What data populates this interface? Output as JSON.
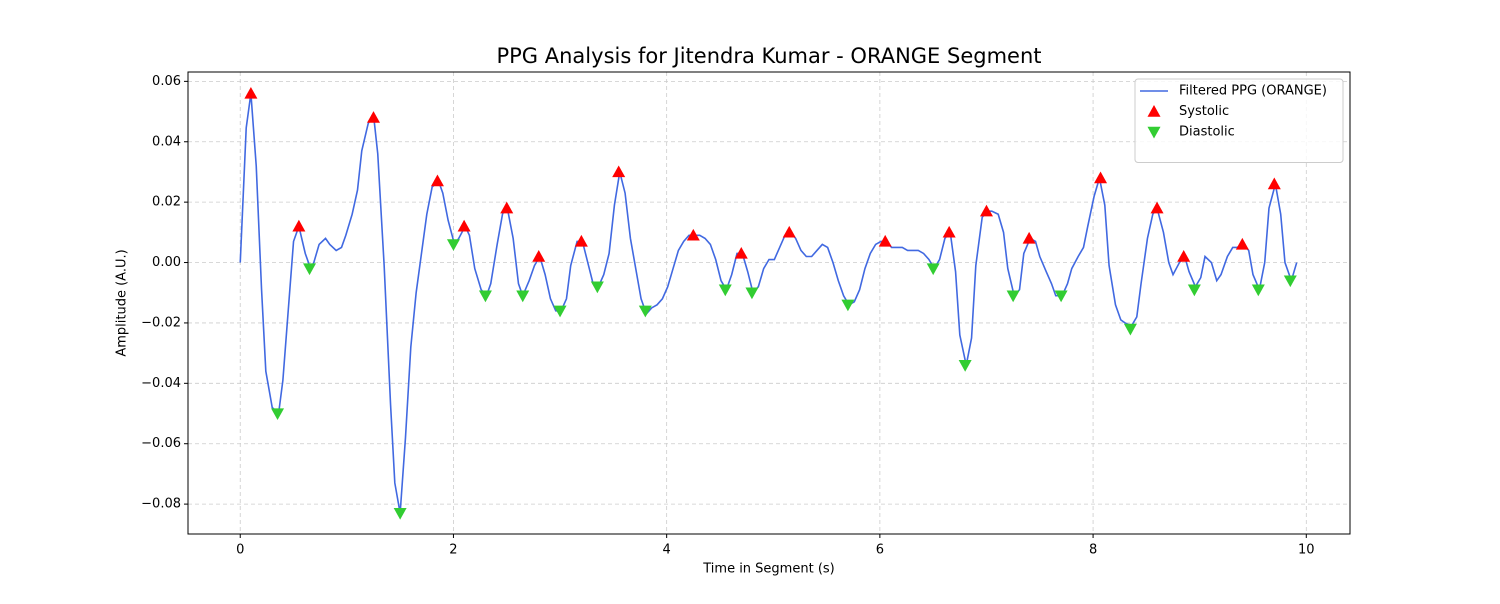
{
  "chart_data": {
    "type": "line",
    "title": "PPG Analysis for Jitendra Kumar - ORANGE Segment",
    "x_label": "Time in Segment (s)",
    "y_label": "Amplitude (A.U.)",
    "xlim": [
      -0.49,
      10.41
    ],
    "ylim": [
      -0.0899,
      0.0631
    ],
    "xticks": [
      0,
      2,
      4,
      6,
      8,
      10
    ],
    "yticks": [
      {
        "value": -0.08,
        "label": "−0.08"
      },
      {
        "value": -0.06,
        "label": "−0.06"
      },
      {
        "value": -0.04,
        "label": "−0.04"
      },
      {
        "value": -0.02,
        "label": "−0.02"
      },
      {
        "value": 0,
        "label": "0.00"
      },
      0.02,
      0.04,
      0.06
    ],
    "grid": true,
    "legend": "upper right",
    "series": [
      {
        "name": "Filtered PPG (ORANGE)",
        "type": "line",
        "color": "#4169e1",
        "x": [
          0,
          0.056,
          0.1,
          0.15,
          0.2,
          0.24,
          0.3,
          0.36,
          0.4,
          0.45,
          0.5,
          0.55,
          0.61,
          0.66,
          0.69,
          0.74,
          0.8,
          0.84,
          0.9,
          0.95,
          0.99,
          1.05,
          1.1,
          1.14,
          1.2,
          1.25,
          1.29,
          1.35,
          1.41,
          1.45,
          1.5,
          1.55,
          1.6,
          1.65,
          1.7,
          1.75,
          1.8,
          1.86,
          1.9,
          1.95,
          2.01,
          2.05,
          2.11,
          2.15,
          2.2,
          2.26,
          2.31,
          2.35,
          2.41,
          2.46,
          2.5,
          2.56,
          2.61,
          2.65,
          2.71,
          2.76,
          2.81,
          2.86,
          2.91,
          2.96,
          3.01,
          3.06,
          3.1,
          3.16,
          3.21,
          3.26,
          3.31,
          3.36,
          3.41,
          3.46,
          3.51,
          3.56,
          3.61,
          3.66,
          3.71,
          3.76,
          3.81,
          3.86,
          3.91,
          3.96,
          4.01,
          4.06,
          4.11,
          4.16,
          4.21,
          4.26,
          4.31,
          4.36,
          4.41,
          4.46,
          4.51,
          4.56,
          4.61,
          4.66,
          4.71,
          4.76,
          4.81,
          4.86,
          4.91,
          4.96,
          5.01,
          5.06,
          5.11,
          5.16,
          5.21,
          5.26,
          5.31,
          5.36,
          5.41,
          5.46,
          5.51,
          5.56,
          5.61,
          5.66,
          5.71,
          5.76,
          5.81,
          5.86,
          5.91,
          5.96,
          6.01,
          6.06,
          6.11,
          6.16,
          6.21,
          6.26,
          6.31,
          6.36,
          6.41,
          6.46,
          6.51,
          6.56,
          6.61,
          6.66,
          6.71,
          6.75,
          6.81,
          6.86,
          6.9,
          6.96,
          7.01,
          7.05,
          7.11,
          7.16,
          7.2,
          7.26,
          7.31,
          7.35,
          7.41,
          7.46,
          7.5,
          7.56,
          7.61,
          7.65,
          7.71,
          7.76,
          7.8,
          7.86,
          7.91,
          7.95,
          8.01,
          8.06,
          8.11,
          8.15,
          8.21,
          8.26,
          8.3,
          8.36,
          8.41,
          8.45,
          8.51,
          8.56,
          8.6,
          8.66,
          8.71,
          8.75,
          8.81,
          8.86,
          8.9,
          8.96,
          9.01,
          9.05,
          9.11,
          9.16,
          9.2,
          9.26,
          9.31,
          9.35,
          9.41,
          9.46,
          9.5,
          9.56,
          9.61,
          9.65,
          9.71,
          9.76,
          9.8,
          9.86,
          9.91
        ],
        "values": [
          0,
          0.0446,
          0.056,
          0.032,
          -0.009,
          -0.036,
          -0.048,
          -0.05,
          -0.039,
          -0.016,
          0.007,
          0.012,
          0.003,
          -0.002,
          0.0,
          0.006,
          0.008,
          0.006,
          0.004,
          0.005,
          0.009,
          0.016,
          0.024,
          0.037,
          0.046,
          0.049,
          0.036,
          -0.001,
          -0.047,
          -0.073,
          -0.083,
          -0.058,
          -0.028,
          -0.01,
          0.003,
          0.016,
          0.025,
          0.027,
          0.023,
          0.014,
          0.006,
          0.008,
          0.012,
          0.009,
          -0.002,
          -0.009,
          -0.011,
          -0.007,
          0.006,
          0.016,
          0.019,
          0.008,
          -0.007,
          -0.011,
          -0.006,
          -0.001,
          0.002,
          -0.004,
          -0.012,
          -0.016,
          -0.016,
          -0.012,
          -0.001,
          0.007,
          0.007,
          0.0,
          -0.007,
          -0.008,
          -0.004,
          0.003,
          0.019,
          0.03,
          0.023,
          0.008,
          -0.002,
          -0.012,
          -0.017,
          -0.015,
          -0.014,
          -0.012,
          -0.008,
          -0.002,
          0.004,
          0.007,
          0.009,
          0.009,
          0.009,
          0.008,
          0.006,
          0.001,
          -0.006,
          -0.009,
          -0.004,
          0.003,
          0.003,
          -0.003,
          -0.01,
          -0.008,
          -0.002,
          0.001,
          0.001,
          0.005,
          0.009,
          0.01,
          0.008,
          0.004,
          0.002,
          0.002,
          0.004,
          0.006,
          0.005,
          0.0,
          -0.006,
          -0.011,
          -0.014,
          -0.013,
          -0.009,
          -0.002,
          0.003,
          0.006,
          0.007,
          0.007,
          0.005,
          0.005,
          0.005,
          0.004,
          0.004,
          0.004,
          0.003,
          0.001,
          -0.002,
          0.001,
          0.008,
          0.01,
          -0.003,
          -0.024,
          -0.034,
          -0.025,
          -0.001,
          0.015,
          0.017,
          0.017,
          0.016,
          0.01,
          -0.002,
          -0.011,
          -0.009,
          0.003,
          0.008,
          0.007,
          0.002,
          -0.003,
          -0.007,
          -0.011,
          -0.011,
          -0.007,
          -0.002,
          0.002,
          0.005,
          0.012,
          0.022,
          0.028,
          0.019,
          -0.001,
          -0.014,
          -0.019,
          -0.02,
          -0.021,
          -0.018,
          -0.007,
          0.008,
          0.016,
          0.018,
          0.01,
          0.0,
          -0.004,
          0.0,
          0.002,
          -0.003,
          -0.008,
          -0.005,
          0.002,
          0.0,
          -0.006,
          -0.004,
          0.002,
          0.005,
          0.005,
          0.006,
          0.004,
          -0.004,
          -0.009,
          0.0,
          0.018,
          0.026,
          0.016,
          0.0,
          -0.006,
          0.0
        ]
      },
      {
        "name": "Systolic",
        "type": "scatter",
        "marker": "up",
        "color": "#ff0000",
        "x": [
          0.1,
          0.55,
          1.25,
          1.85,
          2.1,
          2.5,
          2.8,
          3.2,
          3.55,
          4.25,
          4.7,
          5.15,
          6.05,
          6.65,
          7.0,
          7.4,
          8.07,
          8.6,
          8.85,
          9.4,
          9.7
        ],
        "values": [
          0.056,
          0.012,
          0.048,
          0.027,
          0.012,
          0.018,
          0.002,
          0.007,
          0.03,
          0.009,
          0.003,
          0.01,
          0.007,
          0.01,
          0.017,
          0.008,
          0.028,
          0.018,
          0.002,
          0.006,
          0.026
        ]
      },
      {
        "name": "Diastolic",
        "type": "scatter",
        "marker": "down",
        "color": "#32cd32",
        "x": [
          0.35,
          0.65,
          1.5,
          2.0,
          2.3,
          2.65,
          3.0,
          3.35,
          3.8,
          4.55,
          4.8,
          5.7,
          6.5,
          6.8,
          7.25,
          7.7,
          8.35,
          8.95,
          9.55,
          9.85
        ],
        "values": [
          -0.05,
          -0.002,
          -0.083,
          0.006,
          -0.011,
          -0.011,
          -0.016,
          -0.008,
          -0.016,
          -0.009,
          -0.01,
          -0.014,
          -0.002,
          -0.034,
          -0.011,
          -0.011,
          -0.022,
          -0.009,
          -0.009,
          -0.006
        ]
      }
    ]
  }
}
